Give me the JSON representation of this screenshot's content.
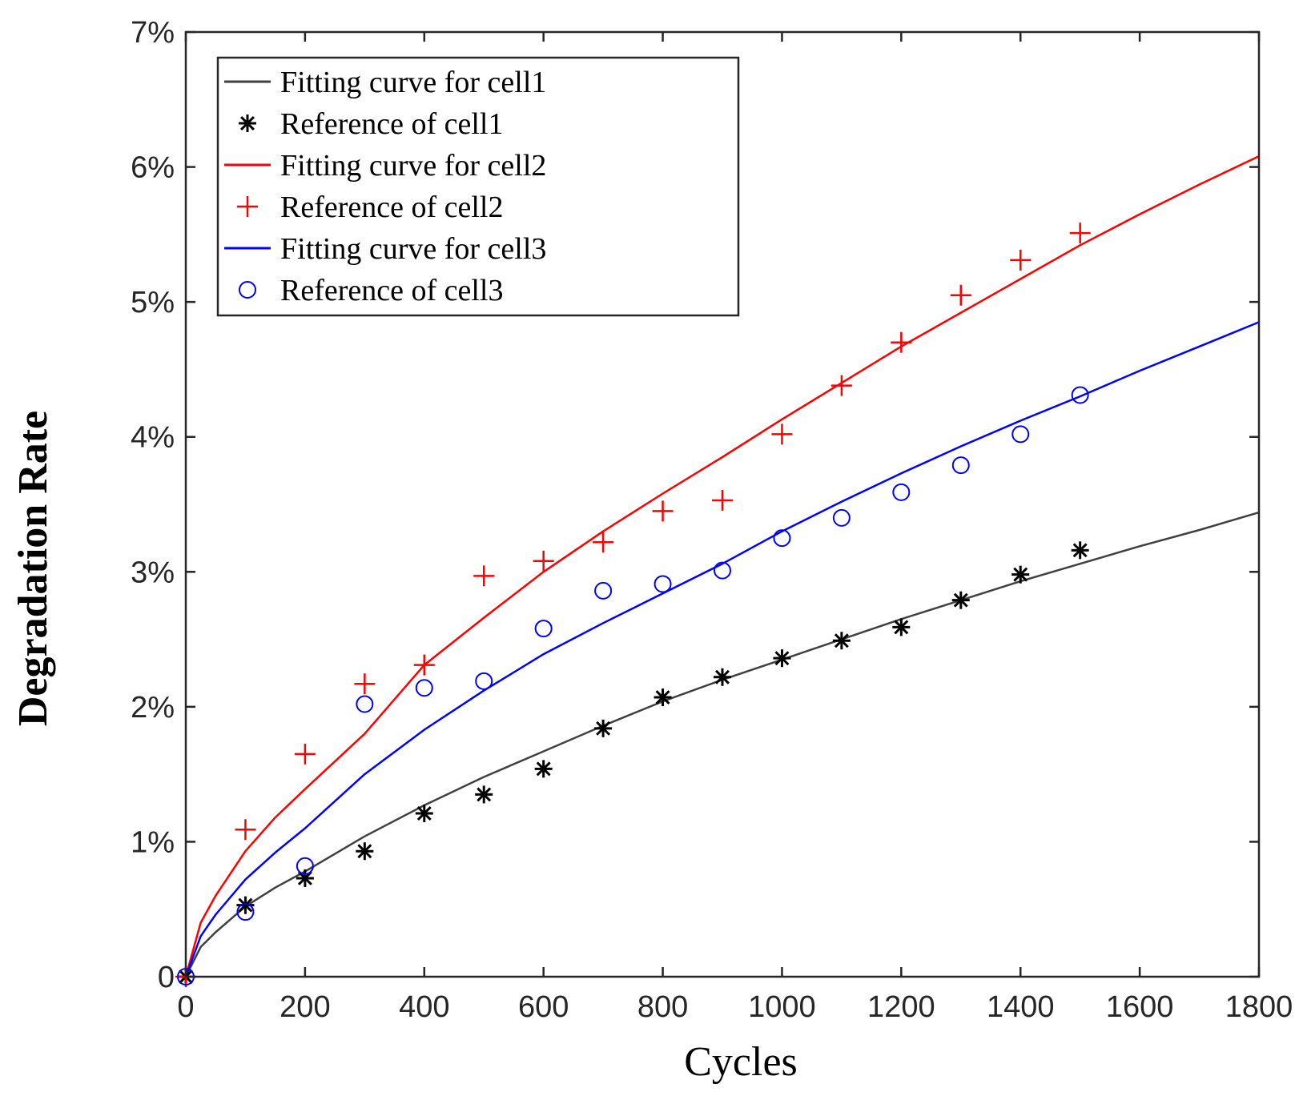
{
  "chart_data": {
    "type": "line",
    "title": "",
    "xlabel": "Cycles",
    "ylabel": "Degradation Rate",
    "xlim": [
      0,
      1800
    ],
    "ylim": [
      0,
      0.07
    ],
    "xticks": [
      0,
      200,
      400,
      600,
      800,
      1000,
      1200,
      1400,
      1600,
      1800
    ],
    "xtick_labels": [
      "0",
      "200",
      "400",
      "600",
      "800",
      "1000",
      "1200",
      "1400",
      "1600",
      "1800"
    ],
    "yticks": [
      0,
      0.01,
      0.02,
      0.03,
      0.04,
      0.05,
      0.06,
      0.07
    ],
    "ytick_labels": [
      "0",
      "1%",
      "2%",
      "3%",
      "4%",
      "5%",
      "6%",
      "7%"
    ],
    "grid": false,
    "legend_position": "top-left",
    "series": [
      {
        "name": "Fitting curve for cell1",
        "kind": "line",
        "color": "#404040",
        "x": [
          0,
          25,
          50,
          100,
          150,
          200,
          300,
          400,
          500,
          600,
          700,
          800,
          900,
          1000,
          1100,
          1200,
          1300,
          1400,
          1500,
          1600,
          1700,
          1800
        ],
        "y": [
          0,
          0.0022,
          0.0033,
          0.0052,
          0.0066,
          0.0078,
          0.0104,
          0.0127,
          0.0148,
          0.0167,
          0.0186,
          0.0204,
          0.022,
          0.0235,
          0.025,
          0.0265,
          0.0279,
          0.0293,
          0.0306,
          0.0319,
          0.0331,
          0.0344
        ]
      },
      {
        "name": "Reference of cell1",
        "kind": "marker",
        "marker": "asterisk",
        "color": "#000000",
        "x": [
          0,
          100,
          200,
          300,
          400,
          500,
          600,
          700,
          800,
          900,
          1000,
          1100,
          1200,
          1300,
          1400,
          1500
        ],
        "y": [
          0,
          0.0053,
          0.0073,
          0.0093,
          0.0121,
          0.0135,
          0.0154,
          0.0184,
          0.0207,
          0.0222,
          0.0236,
          0.0249,
          0.0259,
          0.0279,
          0.0298,
          0.0316
        ]
      },
      {
        "name": "Fitting curve for cell2",
        "kind": "line",
        "color": "#ff0000",
        "x": [
          0,
          25,
          50,
          100,
          150,
          200,
          300,
          400,
          500,
          600,
          700,
          800,
          900,
          1000,
          1100,
          1200,
          1300,
          1400,
          1500,
          1600,
          1700,
          1800
        ],
        "y": [
          0,
          0.004,
          0.006,
          0.0093,
          0.0118,
          0.0139,
          0.018,
          0.0231,
          0.0266,
          0.03,
          0.033,
          0.0358,
          0.0385,
          0.0413,
          0.044,
          0.0467,
          0.0492,
          0.0517,
          0.0542,
          0.0565,
          0.0587,
          0.0608
        ]
      },
      {
        "name": "Reference of cell2",
        "kind": "marker",
        "marker": "plus",
        "color": "#ff0000",
        "x": [
          0,
          100,
          200,
          300,
          400,
          500,
          600,
          700,
          800,
          900,
          1000,
          1100,
          1200,
          1300,
          1400,
          1500
        ],
        "y": [
          0,
          0.0109,
          0.0165,
          0.0217,
          0.0231,
          0.0297,
          0.0308,
          0.0322,
          0.0345,
          0.0353,
          0.0402,
          0.0438,
          0.047,
          0.0505,
          0.0531,
          0.0551
        ]
      },
      {
        "name": "Fitting curve for cell3",
        "kind": "line",
        "color": "#0000ff",
        "x": [
          0,
          25,
          50,
          100,
          150,
          200,
          300,
          400,
          500,
          600,
          700,
          800,
          900,
          1000,
          1100,
          1200,
          1300,
          1400,
          1500,
          1600,
          1700,
          1800
        ],
        "y": [
          0,
          0.003,
          0.0046,
          0.0072,
          0.0092,
          0.011,
          0.015,
          0.0183,
          0.0212,
          0.0239,
          0.0262,
          0.0284,
          0.0306,
          0.033,
          0.0352,
          0.0373,
          0.0393,
          0.0412,
          0.043,
          0.0449,
          0.0467,
          0.0485
        ]
      },
      {
        "name": "Reference of cell3",
        "kind": "marker",
        "marker": "circle",
        "color": "#0000ff",
        "x": [
          0,
          100,
          200,
          300,
          400,
          500,
          600,
          700,
          800,
          900,
          1000,
          1100,
          1200,
          1300,
          1400,
          1500
        ],
        "y": [
          0,
          0.0048,
          0.0082,
          0.0202,
          0.0214,
          0.0219,
          0.0258,
          0.0286,
          0.0291,
          0.0301,
          0.0325,
          0.034,
          0.0359,
          0.0379,
          0.0402,
          0.0431
        ]
      }
    ]
  }
}
